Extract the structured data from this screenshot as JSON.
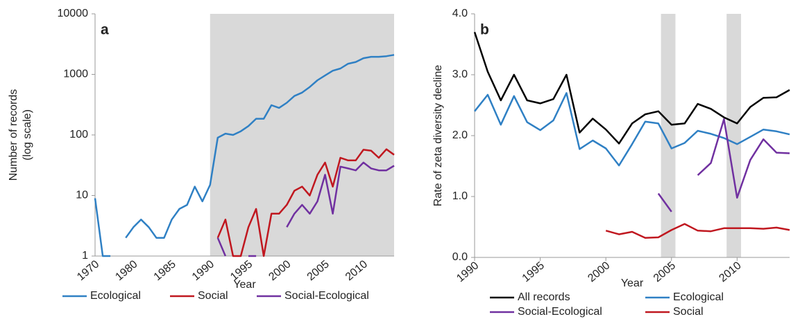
{
  "chart_data": [
    {
      "type": "line",
      "panel_label": "a",
      "y_label": [
        "Number  of records",
        "(log scale)"
      ],
      "x_label": "Year",
      "log_scale": true,
      "categories": [
        "1970",
        null,
        null,
        null,
        null,
        "1980",
        null,
        null,
        null,
        null,
        "1985",
        null,
        null,
        null,
        null,
        "1990",
        null,
        null,
        null,
        null,
        "1995",
        null,
        null,
        null,
        null,
        "2000",
        null,
        null,
        null,
        null,
        "2005",
        null,
        null,
        null,
        null,
        "2010",
        null,
        null,
        null,
        null
      ],
      "ylim": [
        1,
        10000
      ],
      "yticks": [
        1,
        10,
        100,
        1000,
        10000
      ],
      "shaded": [
        [
          15,
          39
        ]
      ],
      "series": [
        {
          "name": "Ecological",
          "color": "#2f80c4",
          "values": [
            9,
            1,
            1,
            null,
            2,
            3,
            4,
            3,
            2,
            2,
            4,
            6,
            7,
            14,
            8,
            15,
            90,
            105,
            100,
            115,
            140,
            185,
            185,
            310,
            280,
            340,
            440,
            500,
            620,
            800,
            960,
            1150,
            1250,
            1500,
            1600,
            1850,
            1950,
            1950,
            2000,
            2100
          ]
        },
        {
          "name": "Social",
          "color": "#c0171f",
          "values": [
            null,
            null,
            null,
            null,
            null,
            null,
            null,
            null,
            null,
            null,
            null,
            null,
            null,
            null,
            null,
            null,
            2,
            4,
            1,
            1,
            3,
            6,
            1,
            5,
            5,
            7,
            12,
            14,
            10,
            22,
            35,
            14,
            42,
            38,
            38,
            57,
            55,
            42,
            58,
            47
          ]
        },
        {
          "name": "Social-Ecological",
          "color": "#7030a0",
          "values": [
            null,
            null,
            null,
            null,
            null,
            null,
            null,
            null,
            null,
            null,
            null,
            null,
            null,
            null,
            null,
            null,
            2,
            1,
            null,
            null,
            1,
            1,
            null,
            null,
            null,
            3,
            5,
            7,
            5,
            8,
            22,
            5,
            30,
            28,
            26,
            35,
            28,
            26,
            26,
            31
          ]
        }
      ]
    },
    {
      "type": "line",
      "panel_label": "b",
      "y_label": [
        "Rate of zeta diversity decline"
      ],
      "x_label": "Year",
      "log_scale": false,
      "x": [
        1990,
        1991,
        1992,
        1993,
        1994,
        1995,
        1996,
        1997,
        1998,
        1999,
        2000,
        2001,
        2002,
        2003,
        2004,
        2005,
        2006,
        2007,
        2008,
        2009,
        2010,
        2011,
        2012,
        2013,
        2014
      ],
      "xlim": [
        1990,
        2014
      ],
      "xticks": [
        1990,
        1995,
        2000,
        2005,
        2010
      ],
      "ylim": [
        0,
        4
      ],
      "yticks": [
        {
          "value": 0,
          "label": "0.0"
        },
        {
          "value": 1,
          "label": "1.0"
        },
        {
          "value": 2,
          "label": "2.0"
        },
        {
          "value": 3,
          "label": "3.0"
        },
        {
          "value": 4,
          "label": "4.0"
        }
      ],
      "shaded": [
        [
          2004.2,
          2005.3
        ],
        [
          2009.2,
          2010.3
        ]
      ],
      "series": [
        {
          "name": "All records",
          "color": "#000000",
          "values": [
            3.7,
            3.05,
            2.58,
            3.0,
            2.58,
            2.53,
            2.6,
            3.0,
            2.05,
            2.28,
            2.1,
            1.87,
            2.2,
            2.35,
            2.4,
            2.18,
            2.2,
            2.52,
            2.44,
            2.3,
            2.2,
            2.47,
            2.62,
            2.63,
            2.75
          ]
        },
        {
          "name": "Ecological",
          "color": "#2f80c4",
          "values": [
            2.4,
            2.67,
            2.18,
            2.65,
            2.22,
            2.09,
            2.25,
            2.7,
            1.78,
            1.92,
            1.79,
            1.51,
            1.86,
            2.23,
            2.2,
            1.79,
            1.88,
            2.08,
            2.03,
            1.96,
            1.86,
            1.98,
            2.1,
            2.07,
            2.02
          ]
        },
        {
          "name": "Social-Ecological",
          "color": "#7030a0",
          "values": [
            null,
            null,
            null,
            null,
            null,
            null,
            null,
            null,
            null,
            null,
            null,
            null,
            null,
            null,
            1.05,
            0.75,
            null,
            1.35,
            1.55,
            2.27,
            0.98,
            1.6,
            1.94,
            1.72,
            1.71
          ]
        },
        {
          "name": "Social",
          "color": "#c0171f",
          "values": [
            null,
            null,
            null,
            null,
            null,
            null,
            null,
            null,
            null,
            null,
            0.44,
            0.38,
            0.42,
            0.32,
            0.33,
            0.45,
            0.55,
            0.44,
            0.43,
            0.48,
            0.48,
            0.48,
            0.47,
            0.49,
            0.45
          ]
        }
      ]
    }
  ]
}
